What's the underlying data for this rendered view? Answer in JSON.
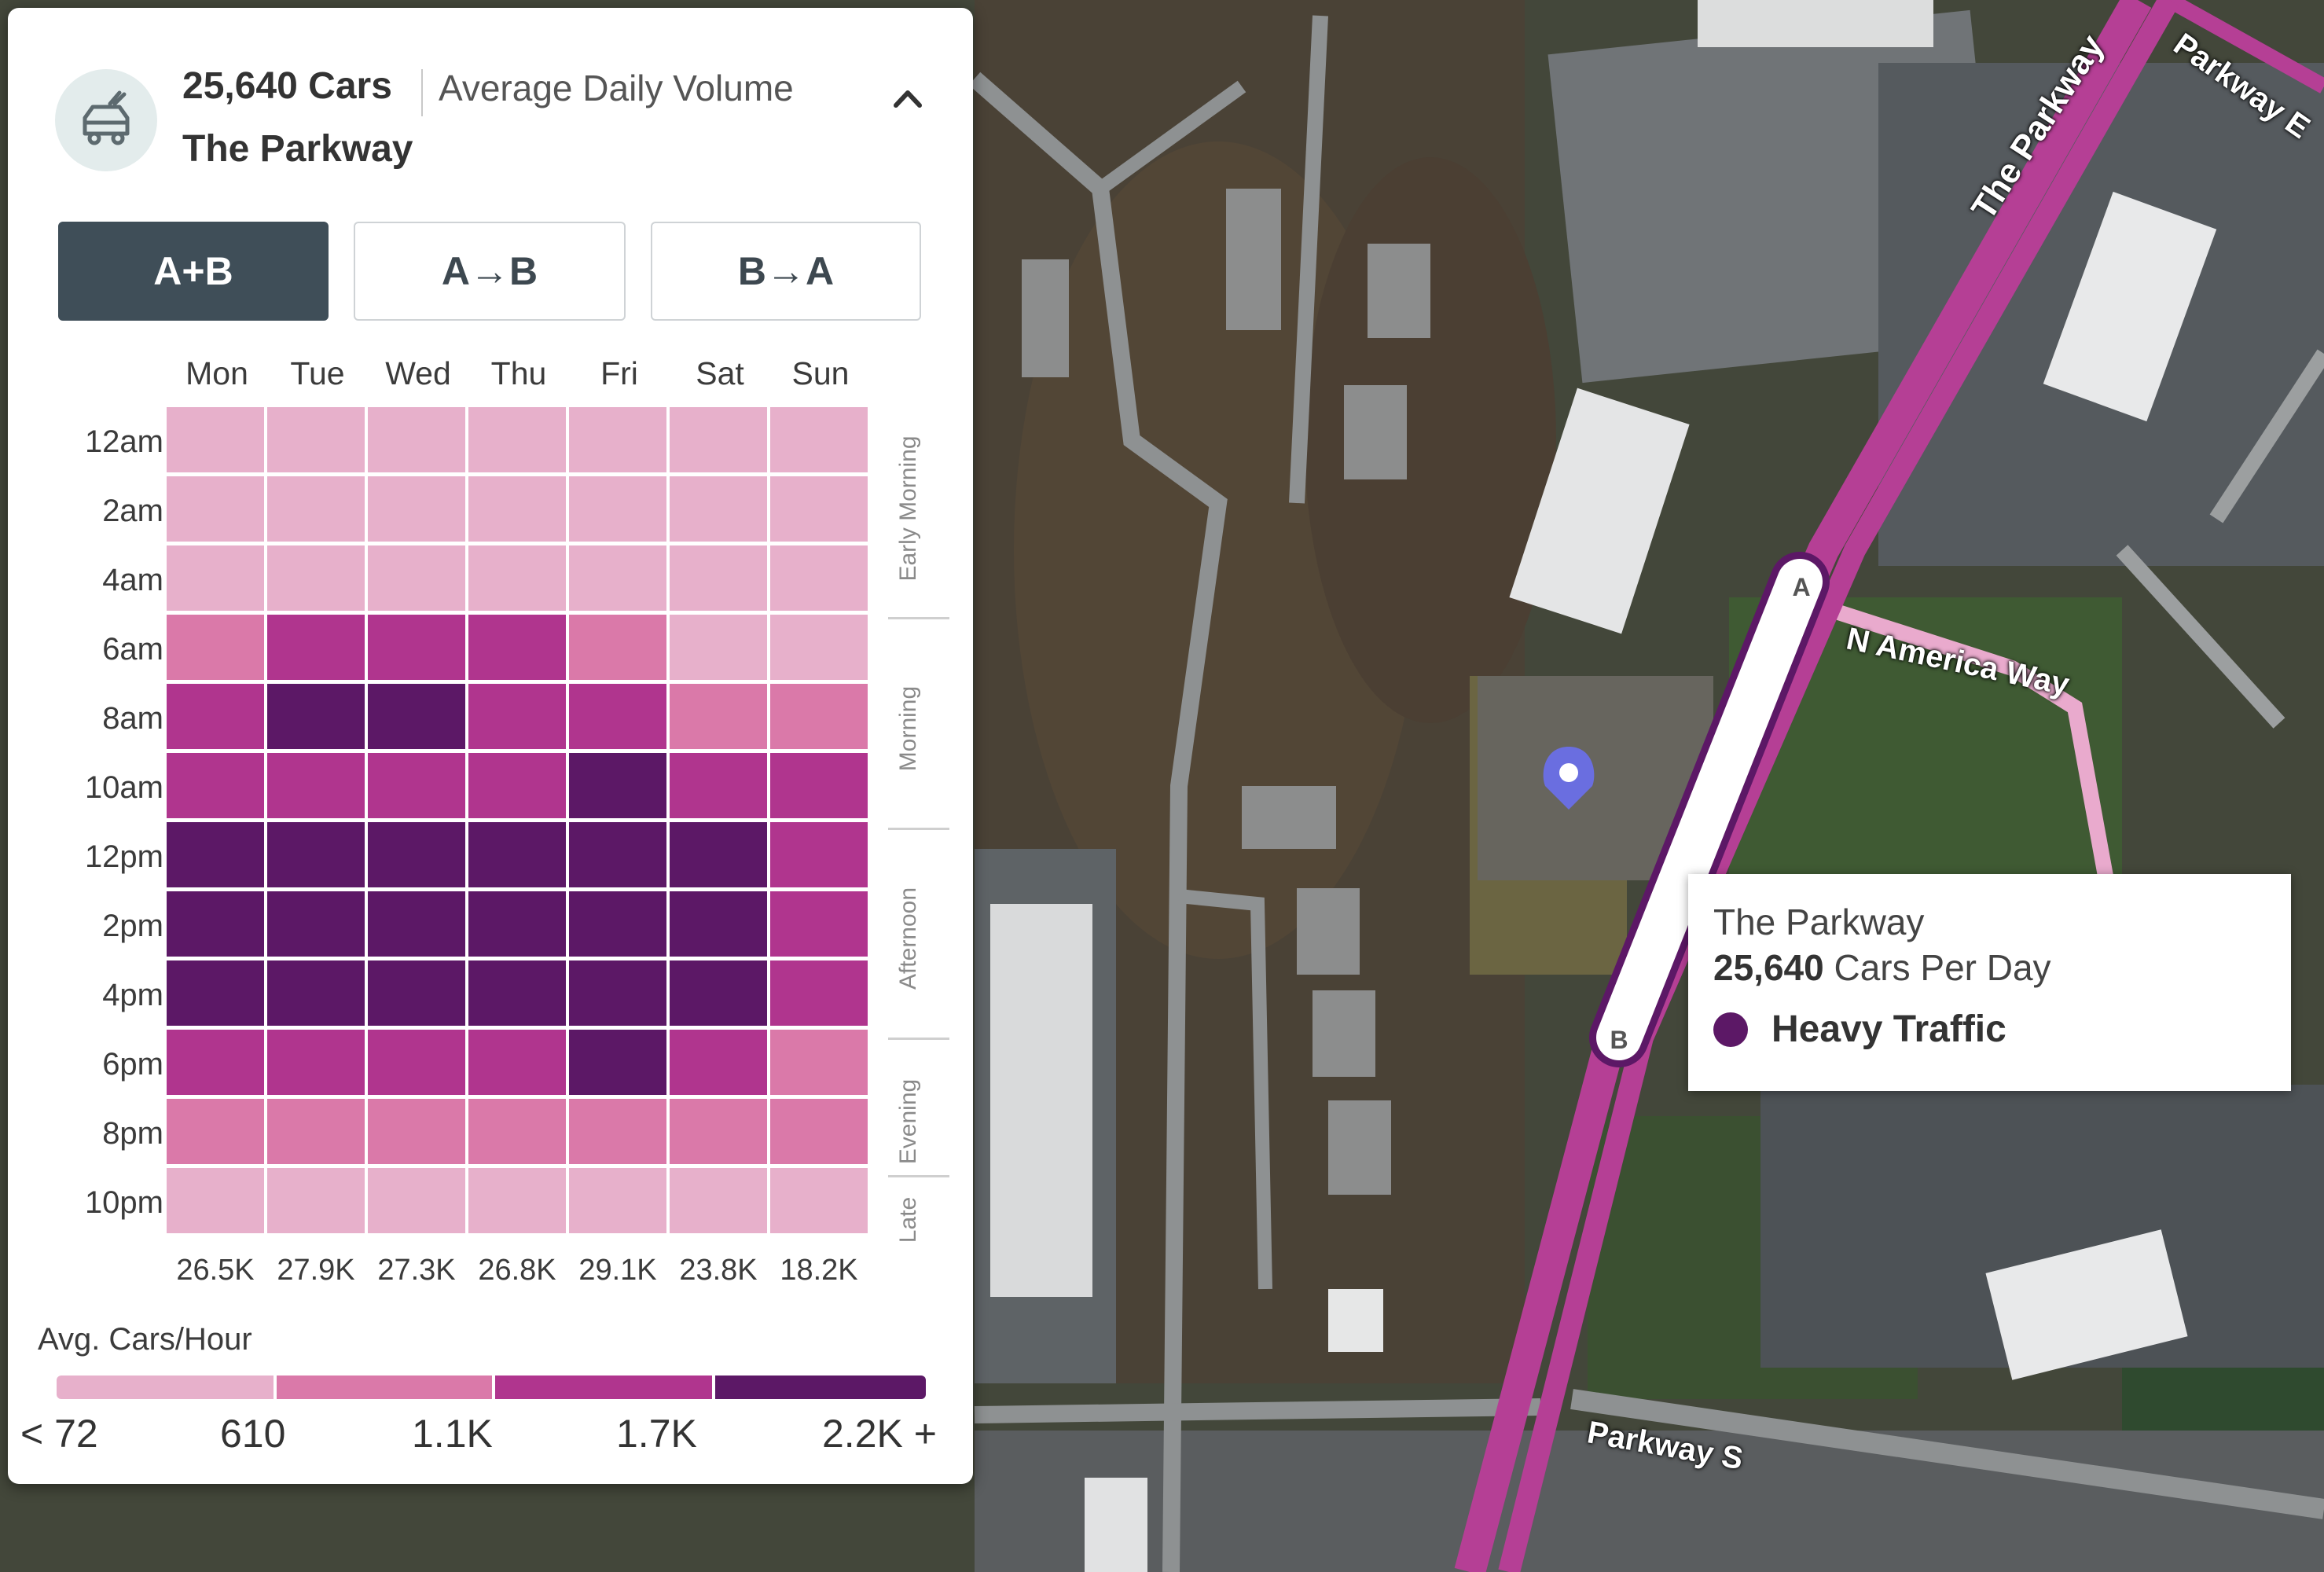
{
  "colors": {
    "level_1": "#e7b0cb",
    "level_2": "#da79a9",
    "level_3": "#b0358e",
    "level_4": "#5c1866",
    "road_overlay": "#b53f95"
  },
  "header": {
    "icon": "car-icon",
    "count": "25,640 Cars",
    "subtitle": "Average Daily Volume",
    "road": "The Parkway",
    "collapse_icon": "chevron-up-icon"
  },
  "direction_toggle": {
    "selected": "A+B",
    "options": [
      "A+B",
      "A→B",
      "B→A"
    ]
  },
  "heatmap": {
    "days": [
      "Mon",
      "Tue",
      "Wed",
      "Thu",
      "Fri",
      "Sat",
      "Sun"
    ],
    "hours": [
      "12am",
      "2am",
      "4am",
      "6am",
      "8am",
      "10am",
      "12pm",
      "2pm",
      "4pm",
      "6pm",
      "8pm",
      "10pm"
    ],
    "periods": [
      "Early Morning",
      "Morning",
      "Afternoon",
      "Evening",
      "Late"
    ],
    "levels": [
      [
        1,
        1,
        1,
        1,
        1,
        1,
        1
      ],
      [
        1,
        1,
        1,
        1,
        1,
        1,
        1
      ],
      [
        1,
        1,
        1,
        1,
        1,
        1,
        1
      ],
      [
        2,
        3,
        3,
        3,
        2,
        1,
        1
      ],
      [
        3,
        4,
        4,
        3,
        3,
        2,
        2
      ],
      [
        3,
        3,
        3,
        3,
        4,
        3,
        3
      ],
      [
        4,
        4,
        4,
        4,
        4,
        4,
        3
      ],
      [
        4,
        4,
        4,
        4,
        4,
        4,
        3
      ],
      [
        4,
        4,
        4,
        4,
        4,
        4,
        3
      ],
      [
        3,
        3,
        3,
        3,
        4,
        3,
        2
      ],
      [
        2,
        2,
        2,
        2,
        2,
        2,
        2
      ],
      [
        1,
        1,
        1,
        1,
        1,
        1,
        1
      ]
    ],
    "daily_totals": [
      "26.5K",
      "27.9K",
      "27.3K",
      "26.8K",
      "29.1K",
      "23.8K",
      "18.2K"
    ]
  },
  "legend": {
    "title": "Avg. Cars/Hour",
    "labels": [
      "< 72",
      "610",
      "1.1K",
      "1.7K",
      "2.2K +"
    ]
  },
  "map": {
    "road_labels": [
      "The Parkway",
      "N America Way",
      "Parkway S",
      "Parkway E"
    ],
    "segment_markers": [
      "A",
      "B"
    ],
    "pin_icon": "location-pin-icon"
  },
  "tooltip": {
    "road": "The Parkway",
    "cars_value": "25,640",
    "cars_suffix": "Cars Per Day",
    "level_label": "Heavy Traffic"
  }
}
